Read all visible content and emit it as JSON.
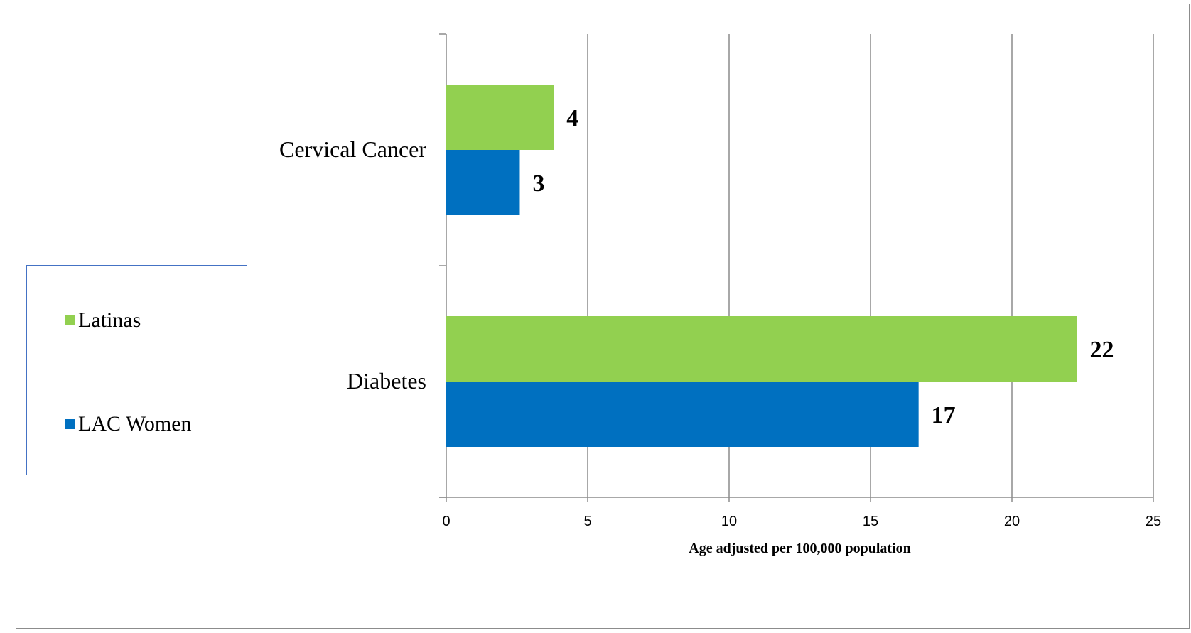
{
  "chart_data": {
    "type": "bar",
    "orientation": "horizontal",
    "categories": [
      "Cervical Cancer",
      "Diabetes"
    ],
    "series": [
      {
        "name": "Latinas",
        "color": "#92d050",
        "values": [
          3.8,
          22.3
        ],
        "labels": [
          "4",
          "22"
        ]
      },
      {
        "name": "LAC Women",
        "color": "#0070c0",
        "values": [
          2.6,
          16.7
        ],
        "labels": [
          "3",
          "17"
        ]
      }
    ],
    "xlabel": "Age adjusted  per 100,000 population",
    "ylabel": "",
    "xlim": [
      0,
      25
    ],
    "xticks": [
      "0",
      "5",
      "10",
      "15",
      "20",
      "25"
    ],
    "grid": true,
    "legend_position": "left"
  }
}
